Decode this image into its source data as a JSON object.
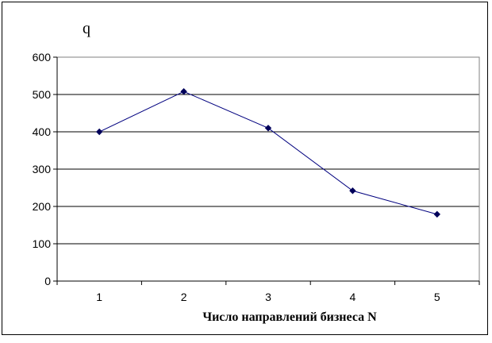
{
  "chart_data": {
    "type": "line",
    "title": "",
    "ylabel": "q",
    "xlabel": "Число направлений бизнеса N",
    "categories": [
      "1",
      "2",
      "3",
      "4",
      "5"
    ],
    "series": [
      {
        "values": [
          400,
          508,
          410,
          242,
          179
        ]
      }
    ],
    "ylim": [
      0,
      600
    ],
    "yticks": [
      "0",
      "100",
      "200",
      "300",
      "400",
      "500",
      "600"
    ],
    "grid": true,
    "legend": "none",
    "colors": {
      "line": "#00007f",
      "marker": "#00005a",
      "grid": "#000000"
    }
  }
}
